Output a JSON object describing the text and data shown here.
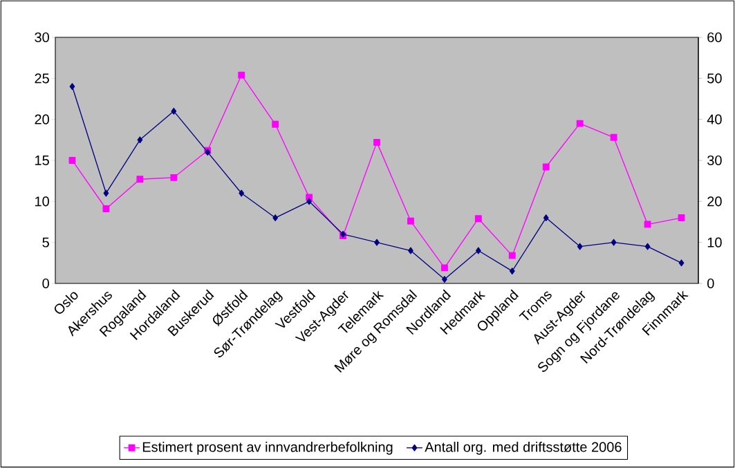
{
  "chart_data": {
    "type": "line",
    "categories": [
      "Oslo",
      "Akershus",
      "Rogaland",
      "Hordaland",
      "Buskerud",
      "Østfold",
      "Sør-Trøndelag",
      "Vestfold",
      "Vest-Agder",
      "Telemark",
      "Møre og Romsdal",
      "Nordland",
      "Hedmark",
      "Oppland",
      "Troms",
      "Aust-Agder",
      "Sogn og Fjordane",
      "Nord-Trøndelag",
      "Finnmark"
    ],
    "series": [
      {
        "name": "Estimert prosent av innvandrerbefolkning",
        "color": "#ff00ff",
        "marker": "square",
        "values": [
          15.0,
          9.1,
          12.7,
          12.9,
          16.2,
          25.4,
          19.4,
          10.5,
          5.8,
          17.2,
          7.6,
          1.9,
          7.9,
          3.4,
          14.2,
          19.5,
          17.8,
          7.2,
          8.0
        ]
      },
      {
        "name": "Antall org. med driftsstøtte 2006",
        "color": "#000080",
        "marker": "diamond",
        "axis": "y2",
        "values": [
          48,
          22,
          35,
          42,
          32,
          22,
          16,
          20,
          12,
          10,
          8,
          1,
          8,
          3,
          16,
          9,
          10,
          9,
          5
        ]
      }
    ],
    "ylim": [
      0,
      30
    ],
    "yticks": [
      0,
      5,
      10,
      15,
      20,
      25,
      30
    ],
    "y2lim": [
      0,
      60
    ],
    "y2ticks": [
      0,
      10,
      20,
      30,
      40,
      50,
      60
    ],
    "grid": false,
    "legend": "bottom"
  }
}
